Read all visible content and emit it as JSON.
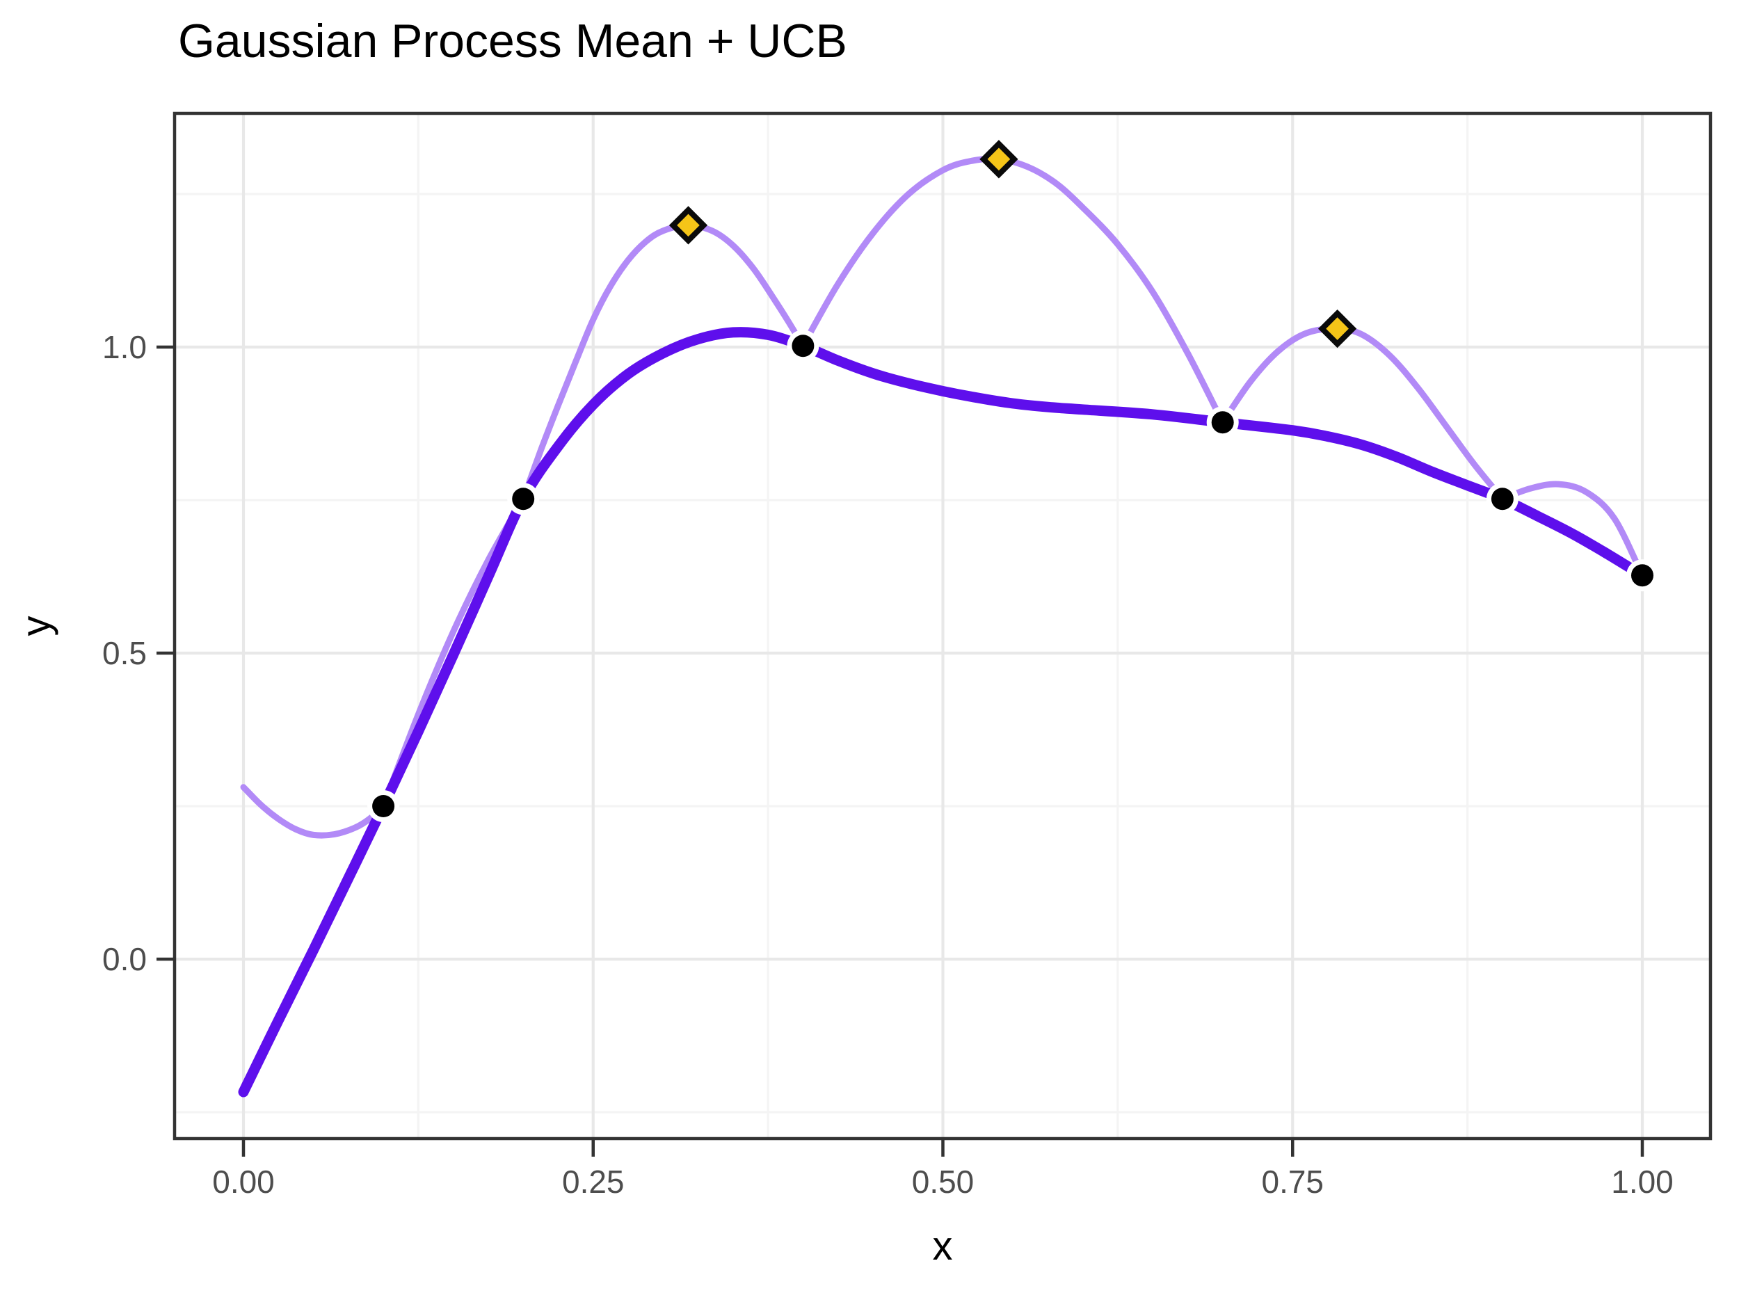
{
  "title": "Gaussian Process Mean + UCB",
  "x_axis": {
    "label": "x",
    "tick_labels": [
      "0.00",
      "0.25",
      "0.50",
      "0.75",
      "1.00"
    ]
  },
  "y_axis": {
    "label": "y",
    "tick_labels": [
      "0.0",
      "0.5",
      "1.0"
    ]
  },
  "colors": {
    "mean_line": "#5e0fec",
    "ucb_line": "#b28af7",
    "observation": "#000000",
    "candidate_fill": "#f5c518",
    "candidate_stroke": "#0a0a0a",
    "grid_major": "#e8e8e8",
    "grid_minor": "#f4f4f4",
    "axis": "#333333",
    "tick_text": "#4d4d4d",
    "background": "#ffffff"
  },
  "chart_data": {
    "type": "line",
    "title": "Gaussian Process Mean + UCB",
    "xlabel": "x",
    "ylabel": "y",
    "xlim": [
      -0.049,
      1.049
    ],
    "ylim": [
      -0.293,
      1.382
    ],
    "grid": true,
    "legend_position": "none",
    "x_ticks": [
      0,
      0.25,
      0.5,
      0.75,
      1.0
    ],
    "y_ticks": [
      0.0,
      0.5,
      1.0
    ],
    "series": [
      {
        "name": "gp_mean",
        "style": "thick",
        "x": [
          0,
          0.025,
          0.05,
          0.075,
          0.1,
          0.125,
          0.15,
          0.175,
          0.2,
          0.225,
          0.25,
          0.275,
          0.3,
          0.325,
          0.35,
          0.375,
          0.4,
          0.425,
          0.45,
          0.475,
          0.5,
          0.525,
          0.55,
          0.575,
          0.6,
          0.65,
          0.7,
          0.75,
          0.775,
          0.8,
          0.825,
          0.85,
          0.875,
          0.9,
          0.925,
          0.95,
          0.975,
          1.0
        ],
        "y": [
          -0.217,
          -0.1,
          0.015,
          0.132,
          0.25,
          0.372,
          0.497,
          0.625,
          0.752,
          0.838,
          0.906,
          0.956,
          0.99,
          1.013,
          1.024,
          1.02,
          1.002,
          0.978,
          0.957,
          0.941,
          0.928,
          0.917,
          0.908,
          0.902,
          0.898,
          0.89,
          0.877,
          0.864,
          0.854,
          0.84,
          0.82,
          0.796,
          0.774,
          0.752,
          0.724,
          0.695,
          0.662,
          0.627
        ]
      },
      {
        "name": "ucb",
        "style": "thin",
        "x": [
          0,
          0.0125,
          0.025,
          0.0375,
          0.05,
          0.065,
          0.08,
          0.09,
          0.1,
          0.125,
          0.15,
          0.175,
          0.2,
          0.2125,
          0.225,
          0.2375,
          0.25,
          0.2625,
          0.275,
          0.2875,
          0.3,
          0.318,
          0.335,
          0.35,
          0.365,
          0.38,
          0.39,
          0.4,
          0.425,
          0.45,
          0.475,
          0.5,
          0.52,
          0.54,
          0.56,
          0.58,
          0.6,
          0.625,
          0.65,
          0.675,
          0.7,
          0.72,
          0.74,
          0.76,
          0.782,
          0.8,
          0.82,
          0.84,
          0.86,
          0.88,
          0.9,
          0.92,
          0.94,
          0.96,
          0.98,
          1.0
        ],
        "y": [
          0.281,
          0.252,
          0.229,
          0.212,
          0.203,
          0.204,
          0.215,
          0.229,
          0.25,
          0.4,
          0.535,
          0.652,
          0.752,
          0.831,
          0.905,
          0.976,
          1.045,
          1.1,
          1.142,
          1.172,
          1.19,
          1.199,
          1.19,
          1.166,
          1.127,
          1.076,
          1.04,
          1.002,
          1.103,
          1.186,
          1.249,
          1.289,
          1.304,
          1.307,
          1.295,
          1.269,
          1.228,
          1.168,
          1.09,
          0.99,
          0.877,
          0.944,
          0.994,
          1.023,
          1.03,
          1.02,
          0.985,
          0.932,
          0.87,
          0.808,
          0.752,
          0.769,
          0.776,
          0.763,
          0.72,
          0.627
        ]
      }
    ],
    "observations": {
      "name": "observed_points",
      "marker": "circle",
      "x": [
        0.1,
        0.2,
        0.4,
        0.7,
        0.9,
        1.0
      ],
      "y": [
        0.25,
        0.752,
        1.002,
        0.877,
        0.752,
        0.627
      ]
    },
    "candidates": {
      "name": "ucb_peak_candidates",
      "marker": "diamond",
      "x": [
        0.318,
        0.54,
        0.782
      ],
      "y": [
        1.199,
        1.307,
        1.03
      ]
    }
  }
}
